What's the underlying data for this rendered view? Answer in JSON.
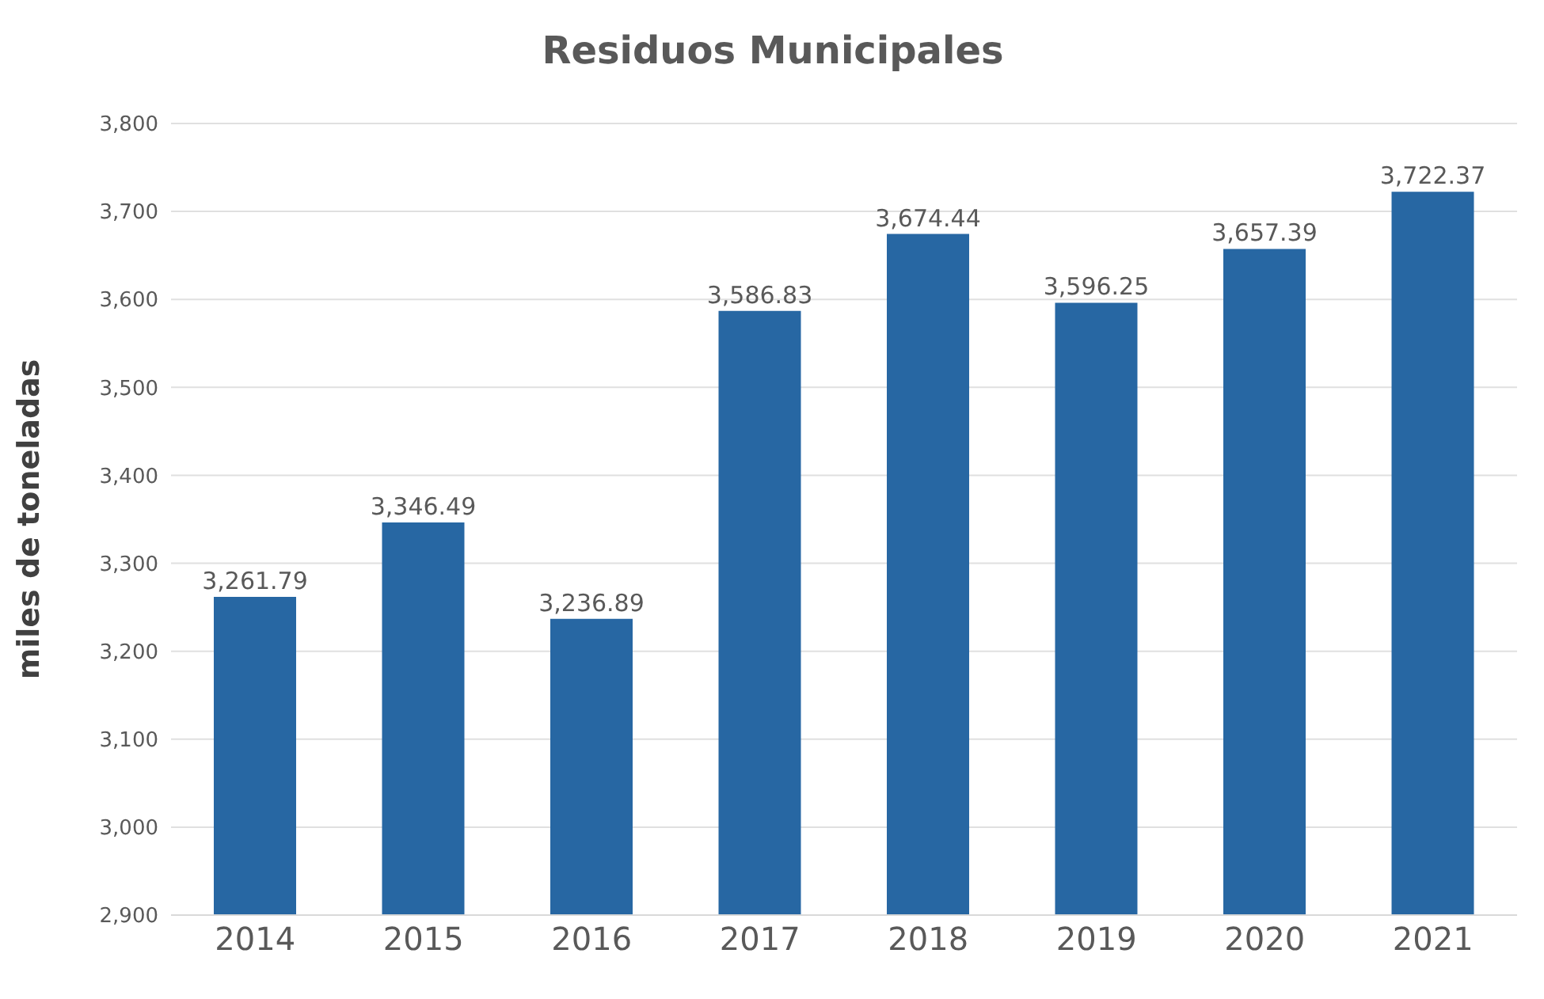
{
  "chart_data": {
    "type": "bar",
    "title": "Residuos Municipales",
    "ylabel": "miles de toneladas",
    "categories": [
      "2014",
      "2015",
      "2016",
      "2017",
      "2018",
      "2019",
      "2020",
      "2021"
    ],
    "values": [
      3261.79,
      3346.49,
      3236.89,
      3586.83,
      3674.44,
      3596.25,
      3657.39,
      3722.37
    ],
    "value_labels": [
      "3,261.79",
      "3,346.49",
      "3,236.89",
      "3,586.83",
      "3,674.44",
      "3,596.25",
      "3,657.39",
      "3,722.37"
    ],
    "color": "#2767a3",
    "ylim": [
      2900,
      3800
    ],
    "yticks": [
      {
        "value": 2900,
        "label": "2,900"
      },
      {
        "value": 3000,
        "label": "3,000"
      },
      {
        "value": 3100,
        "label": "3,100"
      },
      {
        "value": 3200,
        "label": "3,200"
      },
      {
        "value": 3300,
        "label": "3,300"
      },
      {
        "value": 3400,
        "label": "3,400"
      },
      {
        "value": 3500,
        "label": "3,500"
      },
      {
        "value": 3600,
        "label": "3,600"
      },
      {
        "value": 3700,
        "label": "3,700"
      },
      {
        "value": 3800,
        "label": "3,800"
      }
    ],
    "grid": "y",
    "legend": false
  }
}
